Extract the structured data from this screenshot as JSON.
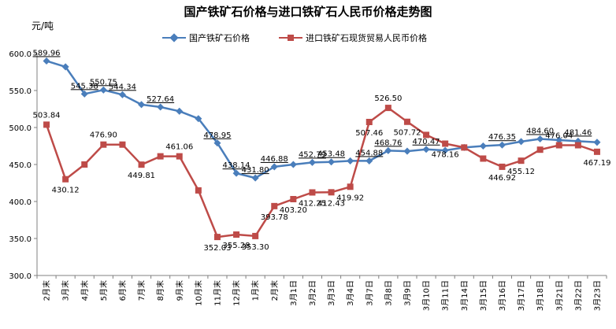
{
  "chart_data": {
    "type": "line",
    "title": "国产铁矿石价格与进口铁矿石人民币价格走势图",
    "ylabel": "元/吨",
    "ylim": [
      300,
      600
    ],
    "yticks": [
      "300.0",
      "350.0",
      "400.0",
      "450.0",
      "500.0",
      "550.0",
      "600.0"
    ],
    "grid": false,
    "legend_position": "top",
    "categories": [
      "2月末",
      "3月末",
      "4月末",
      "5月末",
      "6月末",
      "7月末",
      "8月末",
      "9月末",
      "10月末",
      "11月末",
      "12月末",
      "1月末",
      "2月末",
      "3月1日",
      "3月2日",
      "3月3日",
      "3月4日",
      "3月7日",
      "3月8日",
      "3月9日",
      "3月10日",
      "3月11日",
      "3月14日",
      "3月15日",
      "3月16日",
      "3月17日",
      "3月18日",
      "3月21日",
      "3月22日",
      "3月23日"
    ],
    "series": [
      {
        "name": "国产铁矿石价格",
        "color": "#4a7ebb",
        "marker": "diamond",
        "values": [
          589.96,
          582,
          545.38,
          550.75,
          544.34,
          531,
          527.64,
          522,
          512,
          478.95,
          438.14,
          431.8,
          446.88,
          450,
          452.79,
          453.48,
          454.88,
          454.88,
          468.76,
          468,
          470.47,
          469,
          473,
          475,
          476.35,
          481,
          484.6,
          483,
          481.46,
          480
        ],
        "labels": [
          "589.96",
          "",
          "545.38",
          "550.75",
          "544.34",
          "",
          "527.64",
          "",
          "",
          "478.95",
          "438.14",
          "431.80",
          "446.88",
          "",
          "452.79",
          "453.48",
          "",
          "454.88",
          "468.76",
          "",
          "470.47",
          "",
          "",
          "",
          "476.35",
          "",
          "484.60",
          "",
          "481.46",
          ""
        ]
      },
      {
        "name": "进口铁矿石现货贸易人民币价格",
        "color": "#be4b48",
        "marker": "square",
        "values": [
          503.84,
          430.12,
          450,
          476.9,
          476.9,
          449.81,
          461.06,
          461.06,
          415,
          352.03,
          355.28,
          353.3,
          393.78,
          403.2,
          412.25,
          412.43,
          419.92,
          507.46,
          526.5,
          507.72,
          490,
          478.16,
          473,
          458,
          446.92,
          455.12,
          470,
          476.04,
          476.04,
          467.19
        ],
        "labels": [
          "503.84",
          "430.12",
          "",
          "476.90",
          "",
          "449.81",
          "",
          "461.06",
          "",
          "352.03",
          "355.28",
          "353.30",
          "393.78",
          "403.20",
          "412.25",
          "412.43",
          "419.92",
          "507.46",
          "526.50",
          "507.72",
          "",
          "478.16",
          "",
          "",
          "446.92",
          "455.12",
          "",
          "476.04",
          "",
          "467.19"
        ]
      }
    ]
  }
}
